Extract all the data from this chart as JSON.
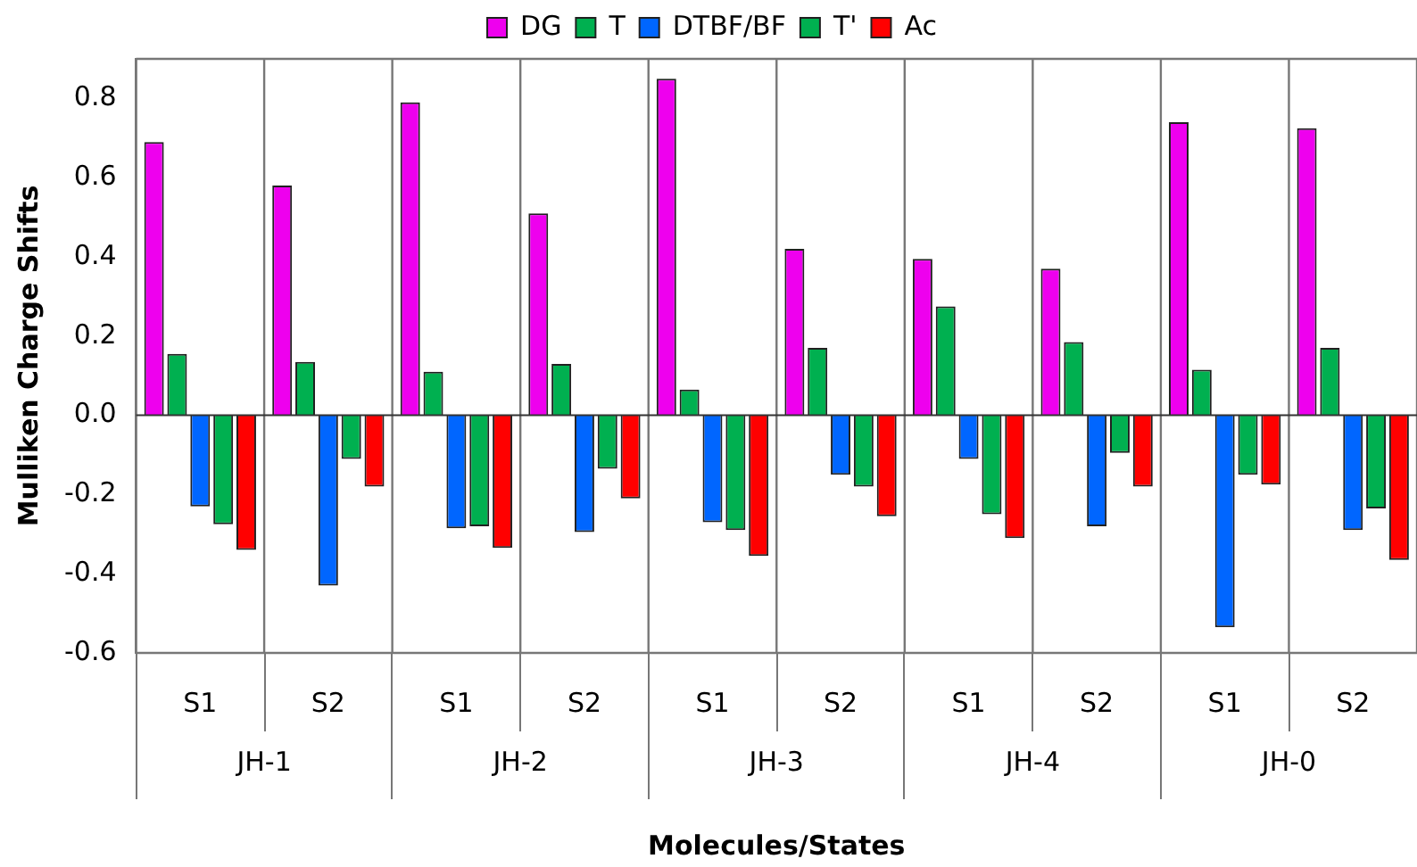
{
  "chart_data": {
    "type": "bar",
    "xlabel": "Molecules/States",
    "ylabel": "Mulliken Charge Shifts",
    "categories": [
      "S1",
      "S2",
      "S1",
      "S2",
      "S1",
      "S2",
      "S1",
      "S2",
      "S1",
      "S2"
    ],
    "annotations": [
      "JH-1",
      "JH-2",
      "JH-3",
      "JH-4",
      "JH-0"
    ],
    "series": [
      {
        "name": "DG",
        "color": "#ee00ee",
        "values": [
          0.69,
          0.58,
          0.79,
          0.51,
          0.85,
          0.42,
          0.395,
          0.37,
          0.74,
          0.725
        ]
      },
      {
        "name": "T",
        "color": "#00b050",
        "values": [
          0.155,
          0.135,
          0.11,
          0.13,
          0.065,
          0.17,
          0.275,
          0.185,
          0.115,
          0.17
        ]
      },
      {
        "name": "DTBF/BF",
        "color": "#0066ff",
        "values": [
          -0.23,
          -0.43,
          -0.285,
          -0.295,
          -0.27,
          -0.15,
          -0.11,
          -0.28,
          -0.535,
          -0.29
        ]
      },
      {
        "name": "T'",
        "color": "#00b050",
        "values": [
          -0.275,
          -0.11,
          -0.28,
          -0.135,
          -0.29,
          -0.18,
          -0.25,
          -0.095,
          -0.15,
          -0.235
        ]
      },
      {
        "name": "Ac",
        "color": "#ff0000",
        "values": [
          -0.34,
          -0.18,
          -0.335,
          -0.21,
          -0.355,
          -0.255,
          -0.31,
          -0.18,
          -0.175,
          -0.365
        ]
      }
    ],
    "ylim": [
      -0.6,
      0.9
    ],
    "yticks": [
      {
        "value": -0.6,
        "label": "-0.6"
      },
      {
        "value": -0.4,
        "label": "-0.4"
      },
      {
        "value": -0.2,
        "label": "-0.2"
      },
      {
        "value": 0,
        "label": "0.0"
      },
      {
        "value": 0.2,
        "label": "0.2"
      },
      {
        "value": 0.4,
        "label": "0.4"
      },
      {
        "value": 0.6,
        "label": "0.6"
      },
      {
        "value": 0.8,
        "label": "0.8"
      }
    ],
    "grid": false,
    "legend": "top"
  }
}
